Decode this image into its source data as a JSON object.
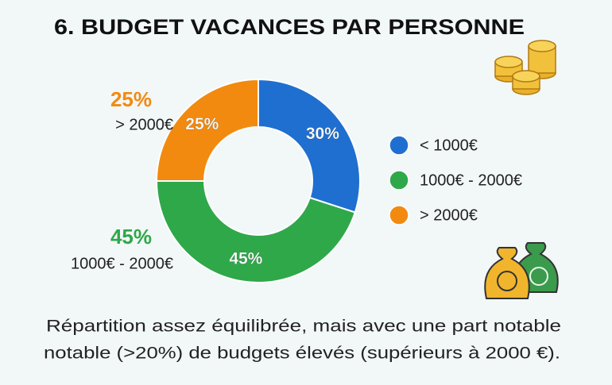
{
  "chart_data": {
    "type": "donut",
    "title": "6. BUDGET VACANCES PAR PERSONNE",
    "categories": [
      "< 1000€",
      "1000€ - 2000€",
      "> 2000€"
    ],
    "values": [
      30,
      45,
      25
    ],
    "value_labels": [
      "30%",
      "45%",
      "25%"
    ],
    "colors": [
      "#1f6fd0",
      "#2fa84a",
      "#f28a10"
    ],
    "caption": [
      "Répartition assez équilibrée, mais avec une part notable",
      "notable (>20%) de budgets élevés (supérieurs à 2000 €)."
    ]
  }
}
